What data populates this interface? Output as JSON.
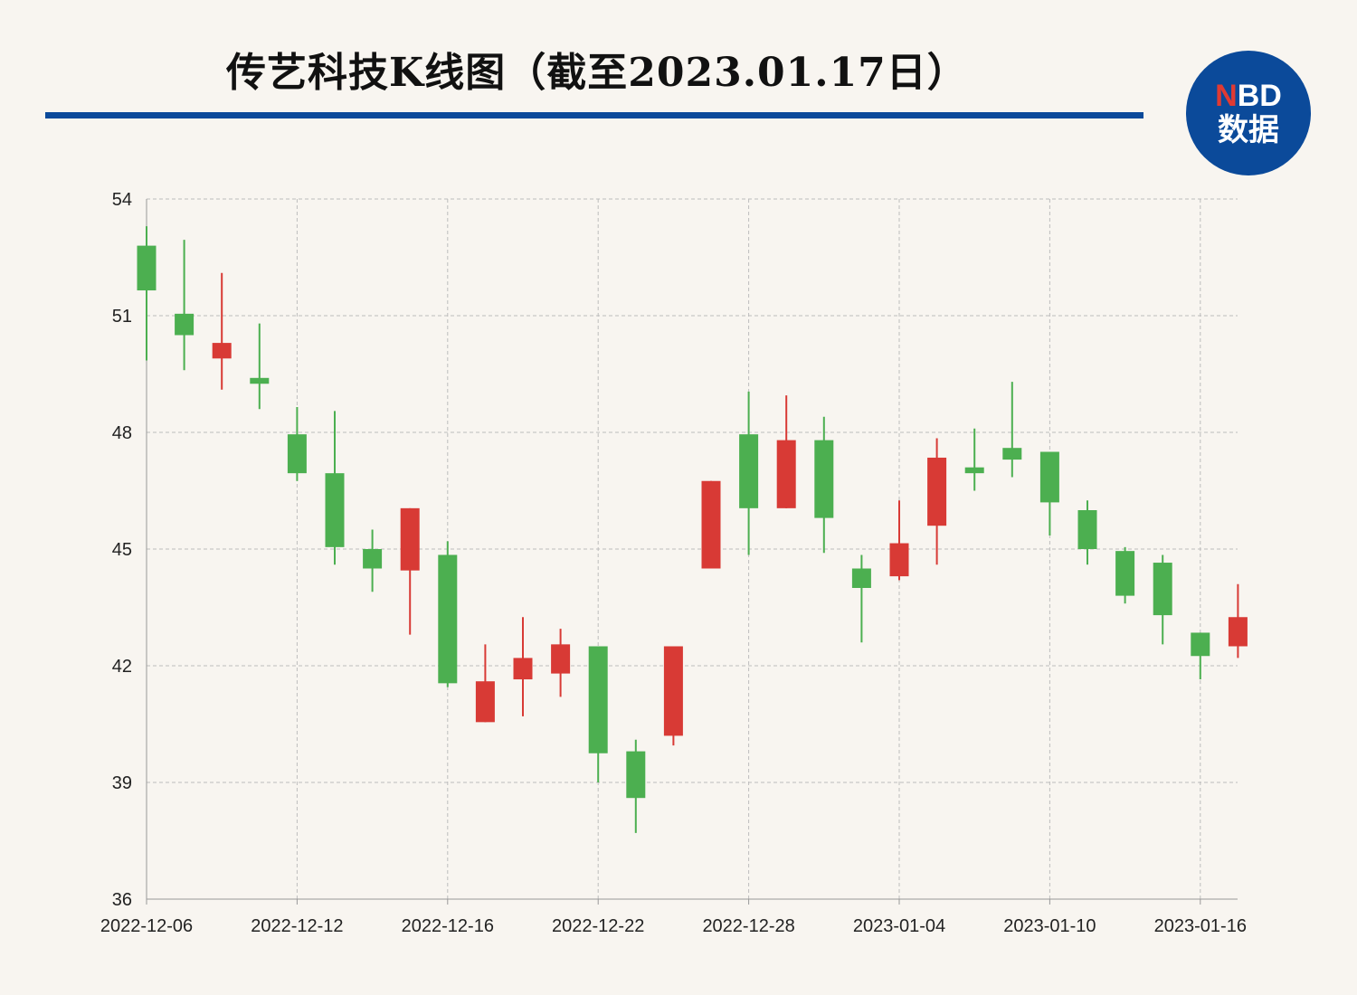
{
  "header": {
    "title": "传艺科技K线图（截至2023.01.17日）",
    "logo_top_n": "N",
    "logo_top_rest": "BD",
    "logo_bottom": "数据"
  },
  "colors": {
    "up": "#d83a35",
    "down": "#4caf50",
    "rule": "#0b4a9a",
    "grid": "#bdbdbd"
  },
  "chart_data": {
    "type": "candlestick",
    "ylim": [
      36,
      54
    ],
    "yticks": [
      "36",
      "39",
      "42",
      "45",
      "48",
      "51",
      "54"
    ],
    "xtick_labels": [
      "2022-12-06",
      "2022-12-12",
      "2022-12-16",
      "2022-12-22",
      "2022-12-28",
      "2023-01-04",
      "2023-01-10",
      "2023-01-16"
    ],
    "grid": true,
    "candles": [
      {
        "date": "2022-12-06",
        "open": 52.8,
        "close": 51.65,
        "high": 53.3,
        "low": 49.85
      },
      {
        "date": "2022-12-07",
        "open": 51.05,
        "close": 50.5,
        "high": 52.95,
        "low": 49.6
      },
      {
        "date": "2022-12-08",
        "open": 49.9,
        "close": 50.3,
        "high": 52.1,
        "low": 49.1
      },
      {
        "date": "2022-12-09",
        "open": 49.4,
        "close": 49.25,
        "high": 50.8,
        "low": 48.6
      },
      {
        "date": "2022-12-12",
        "open": 47.95,
        "close": 46.95,
        "high": 48.65,
        "low": 46.75
      },
      {
        "date": "2022-12-13",
        "open": 46.95,
        "close": 45.05,
        "high": 48.55,
        "low": 44.6
      },
      {
        "date": "2022-12-14",
        "open": 45.0,
        "close": 44.5,
        "high": 45.5,
        "low": 43.9
      },
      {
        "date": "2022-12-15",
        "open": 44.45,
        "close": 46.05,
        "high": 46.05,
        "low": 42.8
      },
      {
        "date": "2022-12-16",
        "open": 44.85,
        "close": 41.55,
        "high": 45.2,
        "low": 41.45
      },
      {
        "date": "2022-12-19",
        "open": 40.55,
        "close": 41.6,
        "high": 42.55,
        "low": 40.55
      },
      {
        "date": "2022-12-20",
        "open": 41.65,
        "close": 42.2,
        "high": 43.25,
        "low": 40.7
      },
      {
        "date": "2022-12-21",
        "open": 41.8,
        "close": 42.55,
        "high": 42.95,
        "low": 41.2
      },
      {
        "date": "2022-12-22",
        "open": 42.5,
        "close": 39.75,
        "high": 42.5,
        "low": 39.0
      },
      {
        "date": "2022-12-23",
        "open": 39.8,
        "close": 38.6,
        "high": 40.1,
        "low": 37.7
      },
      {
        "date": "2022-12-26",
        "open": 40.2,
        "close": 42.5,
        "high": 42.5,
        "low": 39.95
      },
      {
        "date": "2022-12-27",
        "open": 44.5,
        "close": 46.75,
        "high": 46.75,
        "low": 44.5
      },
      {
        "date": "2022-12-28",
        "open": 47.95,
        "close": 46.05,
        "high": 49.05,
        "low": 44.85
      },
      {
        "date": "2022-12-29",
        "open": 46.05,
        "close": 47.8,
        "high": 48.95,
        "low": 46.05
      },
      {
        "date": "2022-12-30",
        "open": 47.8,
        "close": 45.8,
        "high": 48.4,
        "low": 44.9
      },
      {
        "date": "2023-01-03",
        "open": 44.5,
        "close": 44.0,
        "high": 44.85,
        "low": 42.6
      },
      {
        "date": "2023-01-04",
        "open": 44.3,
        "close": 45.15,
        "high": 46.25,
        "low": 44.2
      },
      {
        "date": "2023-01-05",
        "open": 45.6,
        "close": 47.35,
        "high": 47.85,
        "low": 44.6
      },
      {
        "date": "2023-01-06",
        "open": 47.1,
        "close": 46.95,
        "high": 48.1,
        "low": 46.5
      },
      {
        "date": "2023-01-09",
        "open": 47.6,
        "close": 47.3,
        "high": 49.3,
        "low": 46.85
      },
      {
        "date": "2023-01-10",
        "open": 47.5,
        "close": 46.2,
        "high": 47.5,
        "low": 45.35
      },
      {
        "date": "2023-01-11",
        "open": 46.0,
        "close": 45.0,
        "high": 46.25,
        "low": 44.6
      },
      {
        "date": "2023-01-12",
        "open": 44.95,
        "close": 43.8,
        "high": 45.05,
        "low": 43.6
      },
      {
        "date": "2023-01-13",
        "open": 44.65,
        "close": 43.3,
        "high": 44.85,
        "low": 42.55
      },
      {
        "date": "2023-01-16",
        "open": 42.85,
        "close": 42.25,
        "high": 42.85,
        "low": 41.65
      },
      {
        "date": "2023-01-17",
        "open": 42.5,
        "close": 43.25,
        "high": 44.1,
        "low": 42.2
      }
    ]
  }
}
